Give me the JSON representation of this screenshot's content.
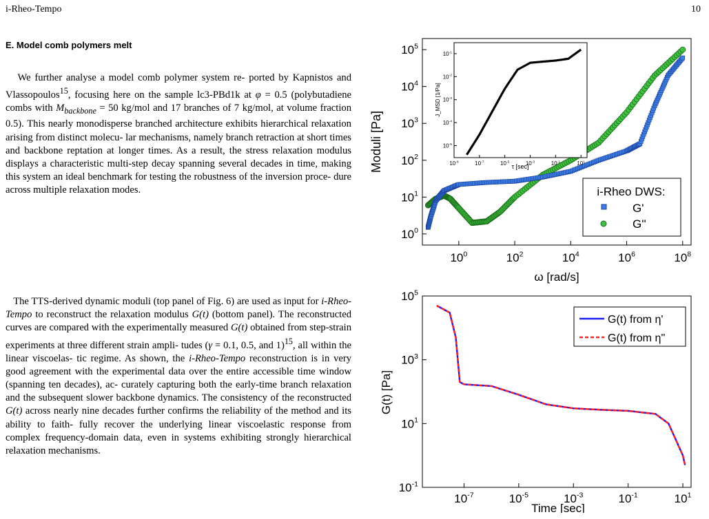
{
  "header": {
    "left": "i-Rheo-Tempo",
    "page_number": "10"
  },
  "section": {
    "title": "E.   Model comb polymers melt"
  },
  "body": {
    "p1": [
      "We further analyse a model comb polymer system re-",
      "ported by Kapnistos and Vlassopoulos",
      "15",
      ", focusing here on",
      "the sample lc3-PBd1k at ",
      "φ",
      " = 0.5 (polybutadiene combs with",
      "M",
      "backbone",
      " = 50 kg/mol and 17 branches of 7 kg/mol, at volume",
      "fraction 0.5). This nearly monodisperse branched architecture",
      "exhibits hierarchical relaxation arising from distinct molecu-",
      "lar mechanisms, namely branch retraction at short times and",
      "backbone reptation at longer times.  As a result, the stress",
      "relaxation modulus displays a characteristic multi-step decay",
      "spanning several decades in time, making this system an ideal",
      "benchmark for testing the robustness of the inversion proce-",
      "dure across multiple relaxation modes."
    ],
    "p2": [
      "The TTS-derived dynamic moduli (top panel of Fig. 6) are",
      "used as input for ",
      "i-Rheo-Tempo",
      " to reconstruct the relaxation",
      "modulus ",
      "G(t)",
      " (bottom panel). The reconstructed curves are",
      "compared with the experimentally measured ",
      "G(t)",
      " obtained",
      "from step-strain experiments at three different strain ampli-",
      "tudes (",
      "γ",
      " = 0.1, 0.5, and 1)",
      "15",
      ", all within the linear viscoelas-",
      "tic regime.  As shown, the ",
      "i-Rheo-Tempo",
      " reconstruction is",
      "in very good agreement with the experimental data over the",
      "entire accessible time window (spanning ten decades), ac-",
      "curately capturing both the early-time branch relaxation and",
      "the subsequent slower backbone dynamics.  The consistency",
      "of the reconstructed ",
      "G(t)",
      " across nearly nine decades further",
      "confirms the reliability of the method and its ability to faith-",
      "fully recover the underlying linear viscoelastic response from",
      "complex frequency-domain data, even in systems exhibiting",
      "strongly hierarchical relaxation mechanisms."
    ]
  },
  "colors": {
    "g_prime": "#3b7fe6",
    "g_double_prime": "#1f9c1f",
    "g_t_eta1": "#1a1aff",
    "g_t_eta2": "#ff2020"
  },
  "chart_data": [
    {
      "type": "scatter",
      "xlabel": "ω [rad/s]",
      "ylabel": "Moduli [Pa]",
      "xscale": "log",
      "yscale": "log",
      "xlim": [
        0.05,
        200000000
      ],
      "ylim": [
        0.5,
        200000
      ],
      "xticks": [
        "10^0",
        "10^2",
        "10^4",
        "10^6",
        "10^8"
      ],
      "yticks": [
        "10^0",
        "10^1",
        "10^2",
        "10^3",
        "10^4",
        "10^5"
      ],
      "legend": {
        "title": "i-Rheo DWS:",
        "entries": [
          "G'",
          "G''"
        ],
        "position": "right"
      },
      "series": [
        {
          "name": "G'",
          "x": [
            0.08,
            0.1,
            0.15,
            0.3,
            1,
            10,
            100,
            1000,
            10000,
            100000,
            1000000,
            3000000,
            10000000,
            30000000,
            100000000
          ],
          "y": [
            1.5,
            3,
            8,
            15,
            22,
            25,
            27,
            35,
            50,
            100,
            180,
            280,
            3000,
            20000,
            60000
          ]
        },
        {
          "name": "G''",
          "x": [
            0.08,
            0.15,
            0.3,
            0.5,
            1,
            3,
            10,
            30,
            100,
            1000,
            10000,
            100000,
            1000000,
            10000000,
            100000000
          ],
          "y": [
            6,
            9,
            11,
            9,
            5,
            2,
            2.2,
            4,
            10,
            40,
            100,
            300,
            2000,
            20000,
            100000
          ]
        }
      ],
      "inset": {
        "xlabel": "τ [sec]",
        "ylabel": "J_MSD [1/Pa]",
        "xlim": [
          1e-09,
          30
        ],
        "ylim": [
          3e-06,
          0.3
        ],
        "xticks": [
          "10^-9",
          "10^-7",
          "10^-5",
          "10^-3",
          "10^-1",
          "10^1"
        ],
        "yticks": [
          "10^-5",
          "10^-4",
          "10^-3",
          "10^-2",
          "10^-1"
        ],
        "x": [
          1e-08,
          1e-07,
          1e-06,
          1e-05,
          0.0001,
          0.001,
          0.01,
          0.1,
          1,
          10
        ],
        "y": [
          4e-06,
          3e-05,
          0.0003,
          0.003,
          0.02,
          0.04,
          0.045,
          0.05,
          0.06,
          0.15
        ]
      }
    },
    {
      "type": "line",
      "xlabel": "Time [sec]",
      "ylabel": "G(t) [Pa]",
      "xscale": "log",
      "yscale": "log",
      "xlim": [
        3e-09,
        20
      ],
      "ylim": [
        0.1,
        100000
      ],
      "xticks": [
        "10^-7",
        "10^-5",
        "10^-3",
        "10^-1",
        "10^1"
      ],
      "yticks": [
        "10^-1",
        "10^1",
        "10^3",
        "10^5"
      ],
      "legend": {
        "entries": [
          "G(t) from η'",
          "G(t) from η''"
        ],
        "position": "top-right"
      },
      "series": [
        {
          "name": "G(t) from η'",
          "x": [
            1e-08,
            3e-08,
            5e-08,
            7e-08,
            1e-07,
            1e-06,
            1e-05,
            0.0001,
            0.001,
            0.01,
            0.1,
            1,
            3,
            10,
            12
          ],
          "y": [
            50000,
            30000,
            5000,
            200,
            170,
            150,
            80,
            40,
            30,
            27,
            25,
            20,
            10,
            1,
            0.5
          ]
        },
        {
          "name": "G(t) from η''",
          "x": [
            1e-08,
            3e-08,
            5e-08,
            7e-08,
            1e-07,
            1e-06,
            1e-05,
            0.0001,
            0.001,
            0.01,
            0.1,
            1,
            3,
            10,
            12
          ],
          "y": [
            50000,
            30000,
            5000,
            200,
            170,
            150,
            80,
            40,
            30,
            27,
            25,
            20,
            10,
            1,
            0.5
          ]
        }
      ]
    }
  ]
}
